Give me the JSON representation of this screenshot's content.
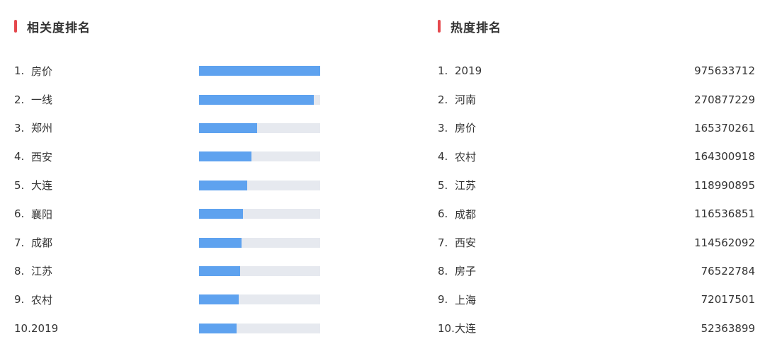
{
  "relevance": {
    "title": "相关度排名",
    "items": [
      {
        "rank": "1.",
        "term": "房价",
        "score": 1.0
      },
      {
        "rank": "2.",
        "term": "一线",
        "score": 0.95
      },
      {
        "rank": "3.",
        "term": "郑州",
        "score": 0.48
      },
      {
        "rank": "4.",
        "term": "西安",
        "score": 0.43
      },
      {
        "rank": "5.",
        "term": "大连",
        "score": 0.4
      },
      {
        "rank": "6.",
        "term": "襄阳",
        "score": 0.36
      },
      {
        "rank": "7.",
        "term": "成都",
        "score": 0.35
      },
      {
        "rank": "8.",
        "term": "江苏",
        "score": 0.34
      },
      {
        "rank": "9.",
        "term": "农村",
        "score": 0.33
      },
      {
        "rank": "10.",
        "term": "2019",
        "score": 0.31
      }
    ]
  },
  "heat": {
    "title": "热度排名",
    "items": [
      {
        "rank": "1.",
        "term": "2019",
        "value": "975633712"
      },
      {
        "rank": "2.",
        "term": "河南",
        "value": "270877229"
      },
      {
        "rank": "3.",
        "term": "房价",
        "value": "165370261"
      },
      {
        "rank": "4.",
        "term": "农村",
        "value": "164300918"
      },
      {
        "rank": "5.",
        "term": "江苏",
        "value": "118990895"
      },
      {
        "rank": "6.",
        "term": "成都",
        "value": "116536851"
      },
      {
        "rank": "7.",
        "term": "西安",
        "value": "114562092"
      },
      {
        "rank": "8.",
        "term": "房子",
        "value": "76522784"
      },
      {
        "rank": "9.",
        "term": "上海",
        "value": "72017501"
      },
      {
        "rank": "10.",
        "term": "大连",
        "value": "52363899"
      }
    ]
  },
  "colors": {
    "accent": "#e5484d",
    "bar_fill": "#5ea2ef",
    "bar_track": "#e6e9ef",
    "text": "#333333"
  }
}
